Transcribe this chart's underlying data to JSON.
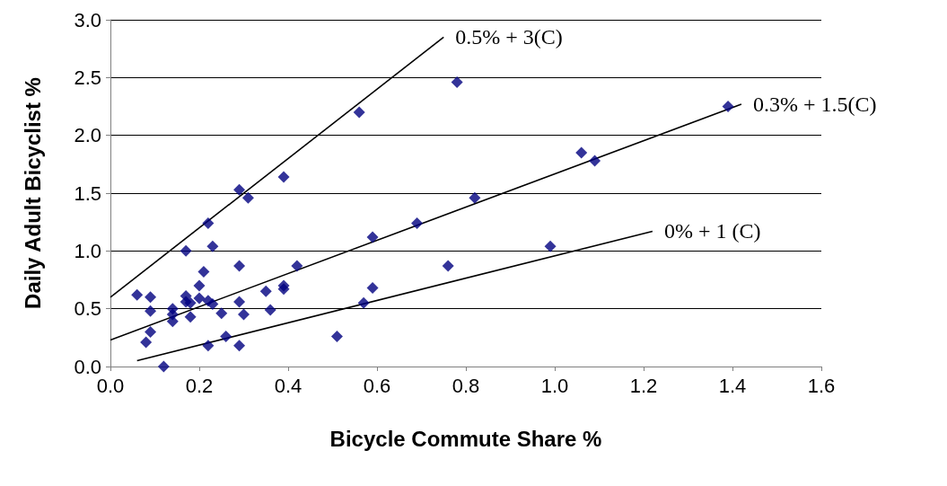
{
  "chart_data": {
    "type": "scatter",
    "xlabel": "Bicycle Commute Share %",
    "ylabel": "Daily Adult Bicyclist %",
    "xlim": [
      0,
      1.6
    ],
    "xticks": [
      {
        "value": 0,
        "label": "0.0"
      },
      {
        "value": 0.2,
        "label": "0.2"
      },
      {
        "value": 0.4,
        "label": "0.4"
      },
      {
        "value": 0.6,
        "label": "0.6"
      },
      {
        "value": 0.8,
        "label": "0.8"
      },
      {
        "value": 1,
        "label": "1.0"
      },
      {
        "value": 1.2,
        "label": "1.2"
      },
      {
        "value": 1.4,
        "label": "1.4"
      },
      {
        "value": 1.6,
        "label": "1.6"
      }
    ],
    "ylim": [
      0,
      3
    ],
    "yticks": [
      {
        "value": 0,
        "label": "0.0"
      },
      {
        "value": 0.5,
        "label": "0.5"
      },
      {
        "value": 1,
        "label": "1.0"
      },
      {
        "value": 1.5,
        "label": "1.5"
      },
      {
        "value": 2,
        "label": "2.0"
      },
      {
        "value": 2.5,
        "label": "2.5"
      },
      {
        "value": 3,
        "label": "3.0"
      }
    ],
    "grid": "y",
    "marker": "diamond",
    "series": [
      {
        "color": "#000080",
        "x": [
          0.06,
          0.09,
          0.09,
          0.09,
          0.08,
          0.12,
          0.14,
          0.14,
          0.14,
          0.17,
          0.17,
          0.17,
          0.18,
          0.18,
          0.2,
          0.2,
          0.21,
          0.22,
          0.23,
          0.22,
          0.23,
          0.22,
          0.25,
          0.26,
          0.29,
          0.31,
          0.29,
          0.29,
          0.3,
          0.29,
          0.39,
          0.39,
          0.39,
          0.35,
          0.36,
          0.42,
          0.51,
          0.57,
          0.59,
          0.59,
          0.56,
          0.82,
          1.06,
          1.09,
          1.39,
          0.99,
          0.76,
          0.69,
          0.78
        ],
        "values": [
          0.62,
          0.6,
          0.48,
          0.3,
          0.21,
          0.0,
          0.5,
          0.45,
          0.39,
          1.0,
          0.61,
          0.56,
          0.55,
          0.43,
          0.7,
          0.59,
          0.82,
          0.57,
          0.54,
          1.24,
          1.04,
          0.18,
          0.46,
          0.26,
          1.53,
          1.46,
          0.87,
          0.56,
          0.45,
          0.18,
          1.64,
          0.7,
          0.67,
          0.65,
          0.49,
          0.87,
          0.26,
          0.55,
          0.68,
          1.12,
          2.2,
          1.46,
          1.85,
          1.78,
          2.25,
          1.04,
          0.87,
          1.24,
          2.46
        ]
      },
      {
        "type": "line",
        "marker": "none",
        "color": "#000000",
        "x": [
          0,
          0.75
        ],
        "values": [
          0.6,
          2.85
        ]
      },
      {
        "type": "line",
        "marker": "none",
        "color": "#000000",
        "x": [
          0,
          1.42
        ],
        "values": [
          0.23,
          2.27
        ]
      },
      {
        "type": "line",
        "marker": "none",
        "color": "#000000",
        "x": [
          0.06,
          1.22
        ],
        "values": [
          0.05,
          1.17
        ]
      }
    ],
    "annotations": [
      {
        "text": "0.5% + 3(C)",
        "x": 0.75,
        "y": 2.85
      },
      {
        "text": "0.3% + 1.5(C)",
        "x": 1.42,
        "y": 2.27
      },
      {
        "text": "0% + 1 (C)",
        "x": 1.22,
        "y": 1.17
      }
    ]
  }
}
